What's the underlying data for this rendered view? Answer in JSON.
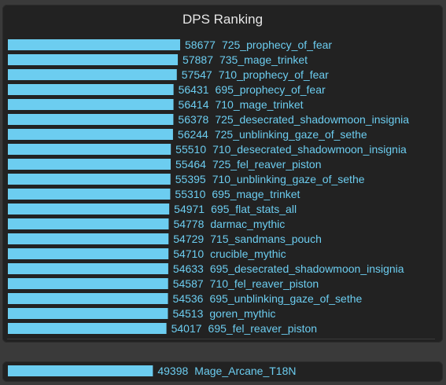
{
  "colors": {
    "background": "#3a3a3a",
    "panel": "#222222",
    "bar": "#6ccdf0",
    "label": "#6ccdf0",
    "title": "#e6e6e6"
  },
  "chart_data": [
    {
      "type": "bar",
      "orientation": "horizontal",
      "title": "DPS Ranking",
      "xlabel": "",
      "ylabel": "",
      "grid": false,
      "legend": "none",
      "xlim": [
        0,
        58677
      ],
      "categories": [
        "725_prophecy_of_fear",
        "735_mage_trinket",
        "710_prophecy_of_fear",
        "695_prophecy_of_fear",
        "710_mage_trinket",
        "725_desecrated_shadowmoon_insignia",
        "725_unblinking_gaze_of_sethe",
        "710_desecrated_shadowmoon_insignia",
        "725_fel_reaver_piston",
        "710_unblinking_gaze_of_sethe",
        "695_mage_trinket",
        "695_flat_stats_all",
        "darmac_mythic",
        "715_sandmans_pouch",
        "crucible_mythic",
        "695_desecrated_shadowmoon_insignia",
        "710_fel_reaver_piston",
        "695_unblinking_gaze_of_sethe",
        "goren_mythic",
        "695_fel_reaver_piston"
      ],
      "values": [
        58677,
        57887,
        57547,
        56431,
        56414,
        56378,
        56244,
        55510,
        55464,
        55395,
        55310,
        54971,
        54778,
        54729,
        54710,
        54633,
        54587,
        54536,
        54513,
        54017
      ]
    },
    {
      "type": "bar",
      "orientation": "horizontal",
      "title": "",
      "xlim": [
        0,
        58677
      ],
      "categories": [
        "Mage_Arcane_T18N"
      ],
      "values": [
        49398
      ]
    }
  ]
}
